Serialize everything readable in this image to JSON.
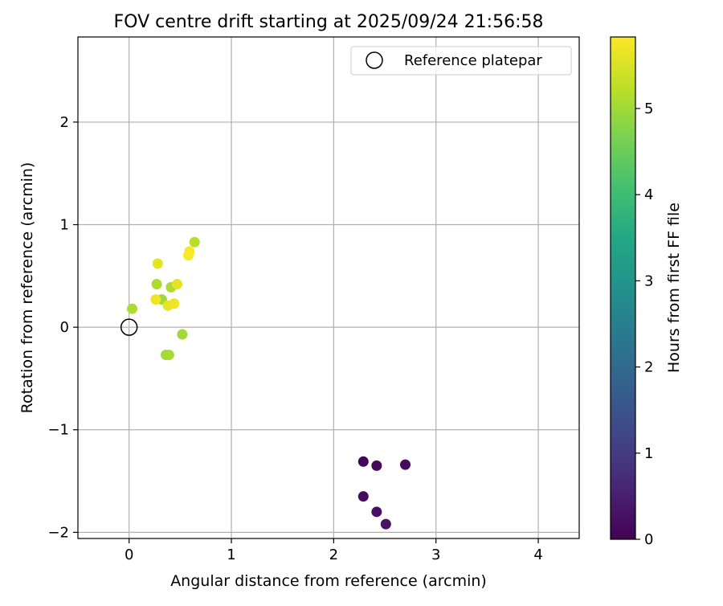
{
  "chart_data": {
    "type": "scatter",
    "title": "FOV centre drift starting at 2025/09/24 21:56:58",
    "xlabel": "Angular distance from reference (arcmin)",
    "ylabel": "Rotation from reference (arcmin)",
    "xlim": [
      -0.5,
      4.4
    ],
    "ylim": [
      -2.06,
      2.83
    ],
    "xticks": [
      0,
      1,
      2,
      3,
      4
    ],
    "xtick_labels": [
      "0",
      "1",
      "2",
      "3",
      "4"
    ],
    "yticks": [
      -2,
      -1,
      0,
      1,
      2
    ],
    "ytick_labels": [
      "−2",
      "−1",
      "0",
      "1",
      "2"
    ],
    "grid": true,
    "legend": {
      "placement": "top-right",
      "entries": [
        {
          "label": "Reference platepar",
          "marker": "open-circle"
        }
      ]
    },
    "reference_point": {
      "x": 0.0,
      "y": 0.0
    },
    "colorbar": {
      "label": "Hours from first FF file",
      "colormap": "viridis",
      "range": [
        0,
        5.83
      ],
      "ticks": [
        0,
        1,
        2,
        3,
        4,
        5
      ],
      "tick_labels": [
        "0",
        "1",
        "2",
        "3",
        "4",
        "5"
      ]
    },
    "points": [
      {
        "x": 2.29,
        "y": -1.31,
        "hours": 0.05
      },
      {
        "x": 2.42,
        "y": -1.35,
        "hours": 0.1
      },
      {
        "x": 2.7,
        "y": -1.34,
        "hours": 0.15
      },
      {
        "x": 2.29,
        "y": -1.65,
        "hours": 0.2
      },
      {
        "x": 2.42,
        "y": -1.8,
        "hours": 0.25
      },
      {
        "x": 2.51,
        "y": -1.92,
        "hours": 0.3
      },
      {
        "x": 0.03,
        "y": 0.18,
        "hours": 5.1
      },
      {
        "x": 0.27,
        "y": 0.42,
        "hours": 5.1
      },
      {
        "x": 0.32,
        "y": 0.27,
        "hours": 5.0
      },
      {
        "x": 0.36,
        "y": -0.27,
        "hours": 5.0
      },
      {
        "x": 0.39,
        "y": -0.27,
        "hours": 5.05
      },
      {
        "x": 0.52,
        "y": -0.07,
        "hours": 5.0
      },
      {
        "x": 0.41,
        "y": 0.39,
        "hours": 5.1
      },
      {
        "x": 0.64,
        "y": 0.83,
        "hours": 5.2
      },
      {
        "x": 0.28,
        "y": 0.62,
        "hours": 5.6
      },
      {
        "x": 0.26,
        "y": 0.27,
        "hours": 5.7
      },
      {
        "x": 0.38,
        "y": 0.21,
        "hours": 5.6
      },
      {
        "x": 0.44,
        "y": 0.23,
        "hours": 5.7
      },
      {
        "x": 0.47,
        "y": 0.42,
        "hours": 5.6
      },
      {
        "x": 0.58,
        "y": 0.7,
        "hours": 5.8
      },
      {
        "x": 0.59,
        "y": 0.74,
        "hours": 5.8
      }
    ]
  }
}
